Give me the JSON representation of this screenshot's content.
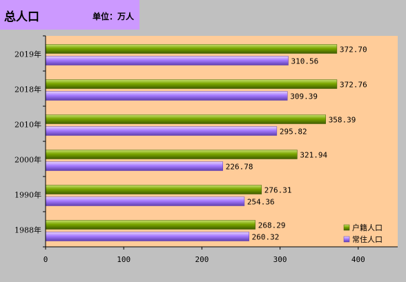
{
  "header": {
    "title": "总人口",
    "unit": "单位：万人"
  },
  "chart_data": {
    "type": "bar",
    "orientation": "horizontal",
    "categories": [
      "2019年",
      "2018年",
      "2010年",
      "2000年",
      "1990年",
      "1988年"
    ],
    "series": [
      {
        "name": "户籍人口",
        "color": "#6b9a00",
        "values": [
          372.7,
          372.76,
          358.39,
          321.94,
          276.31,
          268.29
        ]
      },
      {
        "name": "常住人口",
        "color": "#9966ff",
        "values": [
          310.56,
          309.39,
          295.82,
          226.78,
          254.36,
          260.32
        ]
      }
    ],
    "value_labels": {
      "户籍人口": [
        "372.70",
        "372.76",
        "358.39",
        "321.94",
        "276.31",
        "268.29"
      ],
      "常住人口": [
        "310.56",
        "309.39",
        "295.82",
        "226.78",
        "254.36",
        "260.32"
      ]
    },
    "xlim": [
      0,
      450
    ],
    "xticks": [
      0,
      100,
      200,
      300,
      400
    ],
    "legend_position": "bottom-right",
    "plot_background": "#ffcc99",
    "grid": false
  }
}
